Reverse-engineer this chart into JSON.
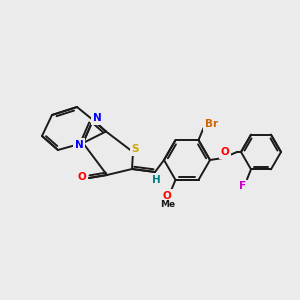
{
  "background_color": "#ebebeb",
  "bond_color": "#1a1a1a",
  "atom_colors": {
    "N": "#0000ff",
    "S": "#ccaa00",
    "O": "#ff0000",
    "Br": "#cc6600",
    "F": "#cc00cc",
    "H": "#008080",
    "C": "#1a1a1a"
  },
  "figsize": [
    3.0,
    3.0
  ],
  "dpi": 100
}
